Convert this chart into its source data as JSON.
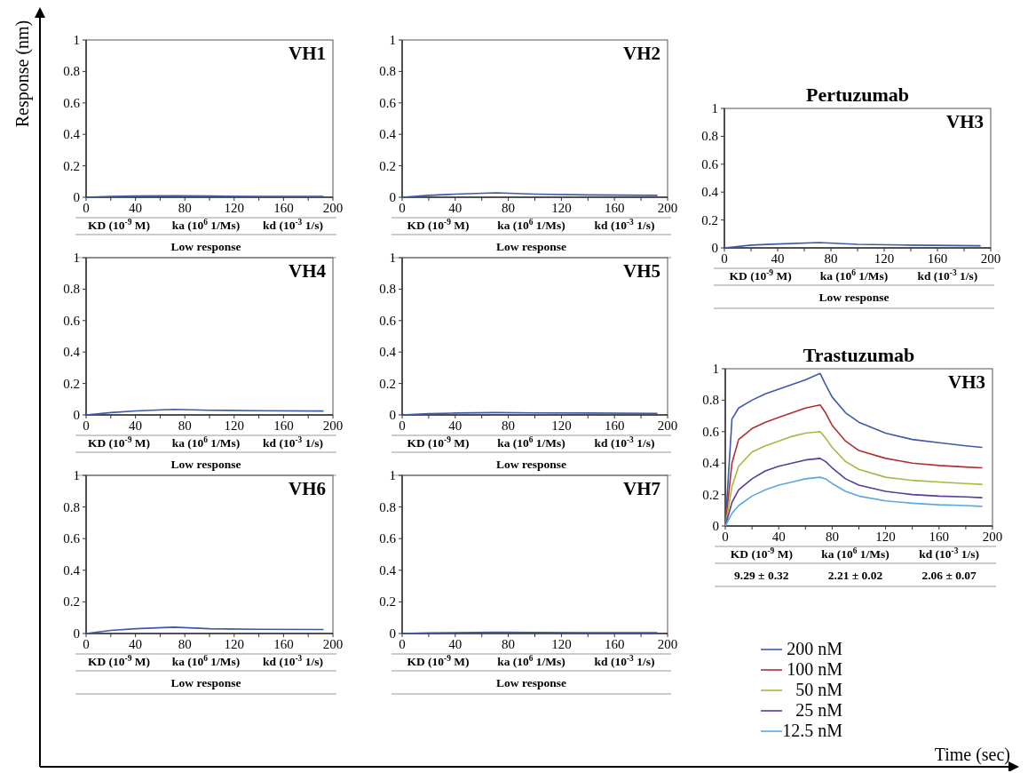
{
  "chart_data": [
    {
      "type": "line",
      "ylabel": "Response (nm)",
      "xlim": [
        0,
        200
      ],
      "ylim": [
        0,
        1
      ],
      "xticks": [
        0,
        {
          "value": 20,
          "label": null
        },
        40,
        {
          "value": 60,
          "label": null
        },
        80,
        {
          "value": 100,
          "label": null
        },
        120,
        {
          "value": 140,
          "label": null
        },
        160,
        {
          "value": 180,
          "label": null
        },
        200
      ],
      "yticks": [
        0,
        0.2,
        0.4,
        0.6,
        0.8,
        1
      ],
      "annotations": [
        "VH1",
        "KD (10$^{-9}$ M)",
        "ka (10$^{6}$ 1/Ms)",
        "kd (10$^{-3}$ 1/s)",
        "Low response"
      ],
      "x": [
        0,
        20,
        40,
        71,
        100,
        140,
        192
      ],
      "series": [
        {
          "color": "#3b5ba8",
          "values": [
            0,
            0.006,
            0.008,
            0.01,
            0.008,
            0.006,
            0.005
          ]
        }
      ]
    },
    {
      "type": "line",
      "xlim": [
        0,
        200
      ],
      "ylim": [
        0,
        1
      ],
      "xticks": [
        0,
        {
          "value": 20,
          "label": null
        },
        40,
        {
          "value": 60,
          "label": null
        },
        80,
        {
          "value": 100,
          "label": null
        },
        120,
        {
          "value": 140,
          "label": null
        },
        160,
        {
          "value": 180,
          "label": null
        },
        200
      ],
      "yticks": [
        0,
        0.2,
        0.4,
        0.6,
        0.8,
        1
      ],
      "annotations": [
        "VH2",
        "KD (10$^{-9}$ M)",
        "ka (10$^{6}$ 1/Ms)",
        "kd (10$^{-3}$ 1/s)",
        "Low response"
      ],
      "x": [
        0,
        20,
        40,
        71,
        100,
        140,
        192
      ],
      "series": [
        {
          "color": "#3b5ba8",
          "values": [
            0,
            0.012,
            0.02,
            0.028,
            0.02,
            0.015,
            0.012
          ]
        }
      ]
    },
    {
      "type": "line",
      "title": "Pertuzumab",
      "xlim": [
        0,
        200
      ],
      "ylim": [
        0,
        1
      ],
      "xticks": [
        0,
        {
          "value": 20,
          "label": null
        },
        40,
        {
          "value": 60,
          "label": null
        },
        80,
        {
          "value": 100,
          "label": null
        },
        120,
        {
          "value": 140,
          "label": null
        },
        160,
        {
          "value": 180,
          "label": null
        },
        200
      ],
      "yticks": [
        0,
        0.2,
        0.4,
        0.6,
        0.8,
        1
      ],
      "annotations": [
        "VH3",
        "KD (10$^{-9}$ M)",
        "ka (10$^{6}$ 1/Ms)",
        "kd (10$^{-3}$ 1/s)",
        "Low response"
      ],
      "x": [
        0,
        20,
        40,
        71,
        100,
        140,
        192
      ],
      "series": [
        {
          "color": "#3b5ba8",
          "values": [
            0,
            0.02,
            0.028,
            0.038,
            0.025,
            0.02,
            0.015
          ]
        }
      ]
    },
    {
      "type": "line",
      "xlim": [
        0,
        200
      ],
      "ylim": [
        0,
        1
      ],
      "xticks": [
        0,
        {
          "value": 20,
          "label": null
        },
        40,
        {
          "value": 60,
          "label": null
        },
        80,
        {
          "value": 100,
          "label": null
        },
        120,
        {
          "value": 140,
          "label": null
        },
        160,
        {
          "value": 180,
          "label": null
        },
        200
      ],
      "yticks": [
        0,
        0.2,
        0.4,
        0.6,
        0.8,
        1
      ],
      "annotations": [
        "VH4",
        "KD (10$^{-9}$ M)",
        "ka (10$^{6}$ 1/Ms)",
        "kd (10$^{-3}$ 1/s)",
        "Low response"
      ],
      "x": [
        0,
        20,
        40,
        71,
        100,
        140,
        192
      ],
      "series": [
        {
          "color": "#3b5ba8",
          "values": [
            0,
            0.015,
            0.025,
            0.035,
            0.03,
            0.027,
            0.025
          ]
        }
      ]
    },
    {
      "type": "line",
      "xlim": [
        0,
        200
      ],
      "ylim": [
        0,
        1
      ],
      "xticks": [
        0,
        {
          "value": 20,
          "label": null
        },
        40,
        {
          "value": 60,
          "label": null
        },
        80,
        {
          "value": 100,
          "label": null
        },
        120,
        {
          "value": 140,
          "label": null
        },
        160,
        {
          "value": 180,
          "label": null
        },
        200
      ],
      "yticks": [
        0,
        0.2,
        0.4,
        0.6,
        0.8,
        1
      ],
      "annotations": [
        "VH5",
        "KD (10$^{-9}$ M)",
        "ka (10$^{6}$ 1/Ms)",
        "kd (10$^{-3}$ 1/s)",
        "Low response"
      ],
      "x": [
        0,
        20,
        40,
        71,
        100,
        140,
        192
      ],
      "series": [
        {
          "color": "#3b5ba8",
          "values": [
            0,
            0.008,
            0.012,
            0.015,
            0.013,
            0.012,
            0.01
          ]
        }
      ]
    },
    {
      "type": "line",
      "title": "Trastuzumab",
      "xlabel": "Time (sec)",
      "legend": "bottom",
      "xlim": [
        0,
        200
      ],
      "ylim": [
        0,
        1
      ],
      "xticks": [
        0,
        {
          "value": 20,
          "label": null
        },
        40,
        {
          "value": 60,
          "label": null
        },
        80,
        {
          "value": 100,
          "label": null
        },
        120,
        {
          "value": 140,
          "label": null
        },
        160,
        {
          "value": 180,
          "label": null
        },
        200
      ],
      "yticks": [
        0,
        0.2,
        0.4,
        0.6,
        0.8,
        1
      ],
      "annotations": [
        "VH3",
        "KD (10$^{-9}$ M)",
        "ka (10$^{6}$ 1/Ms)",
        "kd (10$^{-3}$ 1/s)",
        "9.29 ± 0.32",
        "2.21 ± 0.02",
        "2.06 ± 0.07"
      ],
      "x": [
        0,
        5,
        10,
        20,
        30,
        40,
        50,
        60,
        71,
        75,
        80,
        90,
        100,
        120,
        140,
        160,
        180,
        192
      ],
      "series": [
        {
          "name": "200 nM",
          "color": "#3b5ba8",
          "values": [
            0,
            0.68,
            0.75,
            0.8,
            0.84,
            0.87,
            0.9,
            0.93,
            0.97,
            0.9,
            0.82,
            0.72,
            0.66,
            0.59,
            0.55,
            0.53,
            0.51,
            0.5
          ]
        },
        {
          "name": "100 nM",
          "color": "#b03030",
          "values": [
            0,
            0.4,
            0.55,
            0.62,
            0.66,
            0.69,
            0.72,
            0.75,
            0.77,
            0.72,
            0.64,
            0.54,
            0.48,
            0.43,
            0.4,
            0.385,
            0.375,
            0.37
          ]
        },
        {
          "name": "50 nM",
          "color": "#a8b840",
          "values": [
            0,
            0.25,
            0.38,
            0.47,
            0.51,
            0.54,
            0.57,
            0.59,
            0.6,
            0.56,
            0.5,
            0.41,
            0.36,
            0.31,
            0.29,
            0.28,
            0.27,
            0.265
          ]
        },
        {
          "name": "25 nM",
          "color": "#5a3a9a",
          "values": [
            0,
            0.15,
            0.23,
            0.3,
            0.35,
            0.38,
            0.4,
            0.42,
            0.43,
            0.41,
            0.37,
            0.3,
            0.26,
            0.22,
            0.2,
            0.19,
            0.185,
            0.18
          ]
        },
        {
          "name": "12.5 nM",
          "color": "#5aa8e0",
          "values": [
            0,
            0.08,
            0.13,
            0.19,
            0.23,
            0.26,
            0.28,
            0.3,
            0.31,
            0.3,
            0.27,
            0.22,
            0.19,
            0.16,
            0.145,
            0.135,
            0.13,
            0.125
          ]
        }
      ]
    },
    {
      "type": "line",
      "xlim": [
        0,
        200
      ],
      "ylim": [
        0,
        1
      ],
      "xticks": [
        0,
        {
          "value": 20,
          "label": null
        },
        40,
        {
          "value": 60,
          "label": null
        },
        80,
        {
          "value": 100,
          "label": null
        },
        120,
        {
          "value": 140,
          "label": null
        },
        160,
        {
          "value": 180,
          "label": null
        },
        200
      ],
      "yticks": [
        0,
        0.2,
        0.4,
        0.6,
        0.8,
        1
      ],
      "annotations": [
        "VH6",
        "KD (10$^{-9}$ M)",
        "ka (10$^{6}$ 1/Ms)",
        "kd (10$^{-3}$ 1/s)",
        "Low response"
      ],
      "x": [
        0,
        20,
        40,
        71,
        100,
        140,
        192
      ],
      "series": [
        {
          "color": "#3b5ba8",
          "values": [
            0,
            0.02,
            0.03,
            0.04,
            0.03,
            0.027,
            0.025
          ]
        }
      ]
    },
    {
      "type": "line",
      "xlim": [
        0,
        200
      ],
      "ylim": [
        0,
        1
      ],
      "xticks": [
        0,
        {
          "value": 20,
          "label": null
        },
        40,
        {
          "value": 60,
          "label": null
        },
        80,
        {
          "value": 100,
          "label": null
        },
        120,
        {
          "value": 140,
          "label": null
        },
        160,
        {
          "value": 180,
          "label": null
        },
        200
      ],
      "yticks": [
        0,
        0.2,
        0.4,
        0.6,
        0.8,
        1
      ],
      "annotations": [
        "VH7",
        "KD (10$^{-9}$ M)",
        "ka (10$^{6}$ 1/Ms)",
        "kd (10$^{-3}$ 1/s)",
        "Low response"
      ],
      "x": [
        0,
        20,
        40,
        71,
        100,
        140,
        192
      ],
      "series": [
        {
          "color": "#3b5ba8",
          "values": [
            0,
            0.004,
            0.006,
            0.008,
            0.007,
            0.006,
            0.005
          ]
        }
      ]
    }
  ]
}
